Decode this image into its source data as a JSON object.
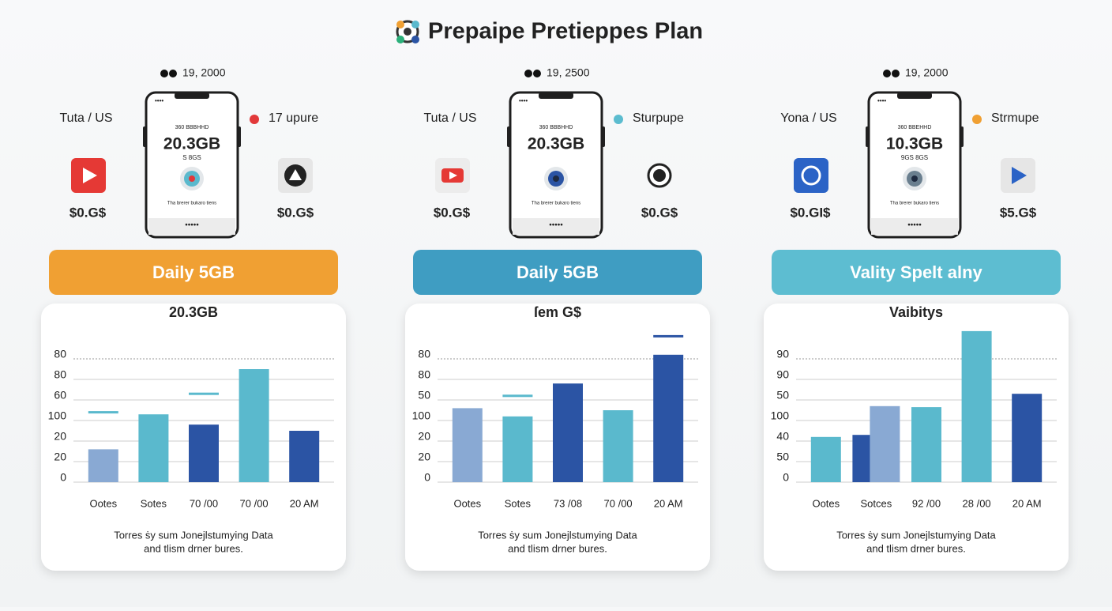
{
  "header": {
    "title": "Prepaipe Pretieppes Plan"
  },
  "panels": [
    {
      "status": "19, 2000",
      "region": "Tuta / US",
      "tag": "17 upure",
      "tag_color": "#e2393a",
      "price_left": "$0.G$",
      "price_right": "$0.G$",
      "screen": {
        "caption": "360 BBBHHD",
        "amount": "20.3GB",
        "sub": "S 8GS",
        "note": "Tha brerer bukaro tiens"
      },
      "banner": {
        "text": "Daily 5GB",
        "color": "#f0a033"
      },
      "subtitle": "20.3GB",
      "chart": {
        "type": "bar",
        "categories": [
          "Ootes",
          "Sotes",
          "70 /00",
          "70 /00",
          "20 AM"
        ],
        "ylim": [
          0,
          8
        ],
        "yticks": [
          0,
          {
            "value": 1,
            "label": "20"
          },
          {
            "value": 2,
            "label": "20"
          },
          {
            "value": 3,
            "label": "100"
          },
          {
            "value": 4,
            "label": "60"
          },
          {
            "value": 5,
            "label": "80"
          },
          {
            "value": 6,
            "label": "80"
          }
        ],
        "grid": true,
        "series": [
          {
            "type": "bar",
            "color": "#89a9d3",
            "values": [
              1.6,
              null,
              null,
              null,
              null
            ]
          },
          {
            "type": "bar",
            "color": "#5ab9cd",
            "values": [
              null,
              3.3,
              null,
              5.5,
              null
            ]
          },
          {
            "type": "bar",
            "color": "#2b54a4",
            "values": [
              null,
              null,
              2.8,
              null,
              2.5
            ]
          },
          {
            "type": "marker",
            "color": "#5ab9cd",
            "values": [
              3.4,
              null,
              4.3,
              null,
              null
            ]
          }
        ]
      },
      "caption": [
        "Torres ṡy sum Jonejlstumying  Data",
        "and tlism drner bures."
      ]
    },
    {
      "status": "19, 2500",
      "region": "Tuta / US",
      "tag": "Sturpupe",
      "tag_color": "#5bbccf",
      "price_left": "$0.G$",
      "price_right": "$0.G$",
      "screen": {
        "caption": "360 BBBHHD",
        "amount": "20.3GB",
        "sub": "",
        "note": "Tha brerer bukaro tiens"
      },
      "banner": {
        "text": "Daily 5GB",
        "color": "#3f9dc2"
      },
      "subtitle": "ſem G$",
      "chart": {
        "type": "bar",
        "categories": [
          "Ootes",
          "Sotes",
          "73 /08",
          "70 /00",
          "20 AM"
        ],
        "ylim": [
          0,
          8
        ],
        "yticks": [
          0,
          {
            "value": 1,
            "label": "20"
          },
          {
            "value": 2,
            "label": "20"
          },
          {
            "value": 3,
            "label": "100"
          },
          {
            "value": 4,
            "label": "50"
          },
          {
            "value": 5,
            "label": "80"
          },
          {
            "value": 6,
            "label": "80"
          }
        ],
        "grid": true,
        "series": [
          {
            "type": "bar",
            "color": "#89a9d3",
            "values": [
              3.6,
              null,
              null,
              null,
              null
            ]
          },
          {
            "type": "bar",
            "color": "#5ab9cd",
            "values": [
              null,
              3.2,
              null,
              3.5,
              null
            ]
          },
          {
            "type": "bar",
            "color": "#2b54a4",
            "values": [
              null,
              null,
              4.8,
              null,
              6.2
            ]
          },
          {
            "type": "marker",
            "color": "#5ab9cd",
            "values": [
              null,
              4.2,
              null,
              null,
              null
            ]
          },
          {
            "type": "marker",
            "color": "#2b54a4",
            "values": [
              null,
              null,
              null,
              null,
              7.1
            ]
          }
        ]
      },
      "caption": [
        "Torres ṡy sum Jonejlstumying  Data",
        "and tlism drner bures."
      ]
    },
    {
      "status": "19, 2000",
      "region": "Yona / US",
      "tag": "Strmupe",
      "tag_color": "#f0a033",
      "price_left": "$0.GI$",
      "price_right": "$5.G$",
      "screen": {
        "caption": "360 BBEHHD",
        "amount": "10.3GB",
        "sub": "9GS 8GS",
        "note": "Tha brerer bukaro tiens"
      },
      "banner": {
        "text": "Vality Spelt alny",
        "color": "#5dbdd1"
      },
      "subtitle": "Vaibitys",
      "chart": {
        "type": "bar",
        "categories": [
          "Ootes",
          "Sotces",
          "92 /00",
          "28 /00",
          "20 AM"
        ],
        "ylim": [
          0,
          8
        ],
        "yticks": [
          0,
          {
            "value": 1,
            "label": "50"
          },
          {
            "value": 2,
            "label": "40"
          },
          {
            "value": 3,
            "label": "100"
          },
          {
            "value": 4,
            "label": "50"
          },
          {
            "value": 5,
            "label": "90"
          },
          {
            "value": 6,
            "label": "90"
          }
        ],
        "grid": true,
        "series": [
          {
            "type": "bar",
            "color": "#5ab9cd",
            "values": [
              2.2,
              null,
              3.65,
              7.35,
              null
            ]
          },
          {
            "type": "bar",
            "color": "#2b54a4",
            "values": [
              null,
              2.3,
              null,
              null,
              4.3
            ]
          },
          {
            "type": "bar",
            "color": "#89a9d3",
            "values": [
              null,
              3.7,
              null,
              null,
              null
            ]
          }
        ]
      },
      "caption": [
        "Torres ṡy sum Jonejlstumying  Data",
        "and tlism drner bures."
      ]
    }
  ]
}
